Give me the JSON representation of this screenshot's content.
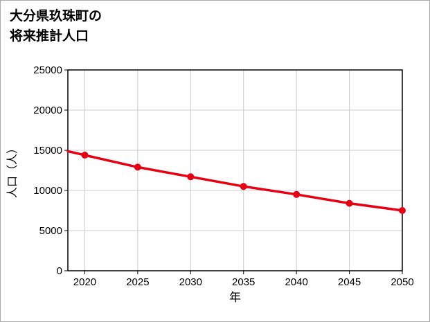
{
  "title": {
    "line1": "大分県玖珠町の",
    "line2": "将来推計人口"
  },
  "chart_data": {
    "type": "line",
    "title": "大分県玖珠町の将来推計人口",
    "xlabel": "年",
    "ylabel": "人口（人）",
    "x": [
      2020,
      2025,
      2030,
      2035,
      2040,
      2045,
      2050
    ],
    "values": [
      14400,
      12900,
      11700,
      10500,
      9500,
      8400,
      7500
    ],
    "x_tick_labels": [
      "2020",
      "2025",
      "2030",
      "2035",
      "2040",
      "2045",
      "2050"
    ],
    "y_ticks": [
      0,
      5000,
      10000,
      15000,
      20000,
      25000
    ],
    "xlim": [
      2018.4,
      2050
    ],
    "ylim": [
      0,
      25000
    ],
    "grid": true,
    "legend": "none",
    "marker": "circle",
    "extend_line_to_left_edge": true,
    "line_color": "#e60012"
  },
  "colors": {
    "accent": "#e60012",
    "grid": "#cccccc",
    "axis": "#000000",
    "text": "#000000",
    "background": "#ffffff",
    "frame_border": "#aaaaaa"
  }
}
